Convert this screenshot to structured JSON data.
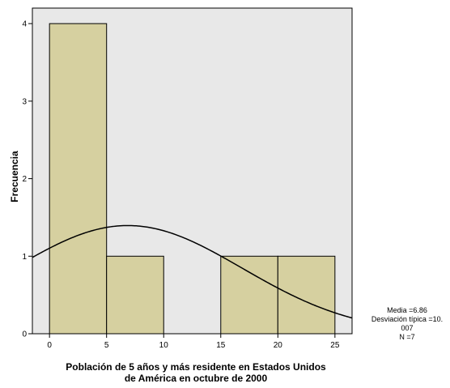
{
  "chart_data": {
    "type": "bar",
    "subtype": "histogram",
    "bins": [
      {
        "start": 0,
        "end": 5,
        "count": 4
      },
      {
        "start": 5,
        "end": 10,
        "count": 1
      },
      {
        "start": 10,
        "end": 15,
        "count": 0
      },
      {
        "start": 15,
        "end": 20,
        "count": 1
      },
      {
        "start": 20,
        "end": 25,
        "count": 1
      }
    ],
    "x_ticks": [
      0,
      5,
      10,
      15,
      20,
      25
    ],
    "y_ticks": [
      0,
      1,
      2,
      3,
      4
    ],
    "xlim": [
      -1.5,
      26.5
    ],
    "ylim": [
      0,
      4.2
    ],
    "xlabel_lines": [
      "Población de 5 años y más residente en Estados Unidos",
      "de América en octubre de 2000"
    ],
    "ylabel": "Frecuencia",
    "grid": false,
    "normal_curve": {
      "mean": 6.86,
      "std": 10.007,
      "n": 7,
      "bin_width": 5
    },
    "stats_lines": [
      "Media =6.86",
      "Desviación típica =10.",
      "007",
      "N =7"
    ],
    "colors": {
      "plot_background": "#e8e8e8",
      "bar_fill": "#d6d0a0",
      "bar_stroke": "#000000",
      "curve": "#000000"
    }
  }
}
